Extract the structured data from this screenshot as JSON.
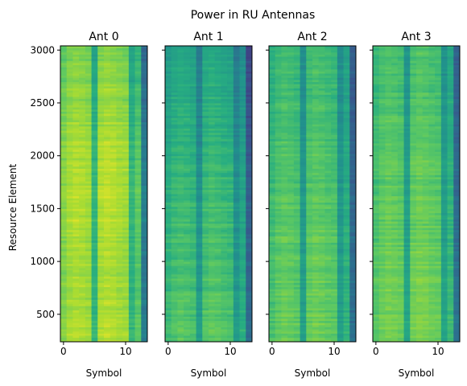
{
  "figure": {
    "title": "Power in RU Antennas",
    "ylabel": "Resource Element"
  },
  "colors": {
    "viridis_low": "#26828e",
    "viridis_mid": "#5ec962",
    "viridis_high": "#d4e21a",
    "frame": "#000000"
  },
  "chart_data": [
    {
      "type": "heatmap",
      "title": "Ant 0",
      "xlabel": "Symbol",
      "ylabel": "Resource Element",
      "x_ticks": [
        0,
        10
      ],
      "y_ticks": [
        500,
        1000,
        1500,
        2000,
        2500,
        3000
      ],
      "xlim": [
        -0.5,
        13.5
      ],
      "ylim": [
        240,
        3040
      ],
      "symbols": [
        0,
        1,
        2,
        3,
        4,
        5,
        6,
        7,
        8,
        9,
        10,
        11,
        12,
        13
      ],
      "column_mean_power": [
        0.78,
        0.83,
        0.85,
        0.84,
        0.82,
        0.62,
        0.84,
        0.86,
        0.85,
        0.83,
        0.82,
        0.62,
        0.7,
        0.38
      ],
      "row_power_trend": {
        "re": [
          240,
          1000,
          1500,
          2000,
          2500,
          3040
        ],
        "offset": [
          0.04,
          0.02,
          0.06,
          0.04,
          0.0,
          -0.04
        ]
      }
    },
    {
      "type": "heatmap",
      "title": "Ant 1",
      "xlabel": "Symbol",
      "x_ticks": [
        0,
        10
      ],
      "xlim": [
        -0.5,
        13.5
      ],
      "ylim": [
        240,
        3040
      ],
      "symbols": [
        0,
        1,
        2,
        3,
        4,
        5,
        6,
        7,
        8,
        9,
        10,
        11,
        12,
        13
      ],
      "column_mean_power": [
        0.6,
        0.64,
        0.66,
        0.65,
        0.63,
        0.48,
        0.65,
        0.67,
        0.66,
        0.64,
        0.63,
        0.47,
        0.55,
        0.28
      ],
      "row_power_trend": {
        "re": [
          240,
          1000,
          1500,
          2000,
          2500,
          3040
        ],
        "offset": [
          0.08,
          0.05,
          0.04,
          0.0,
          -0.03,
          -0.06
        ]
      }
    },
    {
      "type": "heatmap",
      "title": "Ant 2",
      "xlabel": "Symbol",
      "x_ticks": [
        0,
        10
      ],
      "xlim": [
        -0.5,
        13.5
      ],
      "ylim": [
        240,
        3040
      ],
      "symbols": [
        0,
        1,
        2,
        3,
        4,
        5,
        6,
        7,
        8,
        9,
        10,
        11,
        12,
        13
      ],
      "column_mean_power": [
        0.66,
        0.7,
        0.72,
        0.71,
        0.69,
        0.52,
        0.71,
        0.73,
        0.72,
        0.7,
        0.69,
        0.51,
        0.6,
        0.32
      ],
      "row_power_trend": {
        "re": [
          240,
          1000,
          1500,
          2000,
          2500,
          3040
        ],
        "offset": [
          0.06,
          0.04,
          0.03,
          0.01,
          -0.01,
          -0.03
        ]
      }
    },
    {
      "type": "heatmap",
      "title": "Ant 3",
      "xlabel": "Symbol",
      "x_ticks": [
        0,
        10
      ],
      "xlim": [
        -0.5,
        13.5
      ],
      "ylim": [
        240,
        3040
      ],
      "symbols": [
        0,
        1,
        2,
        3,
        4,
        5,
        6,
        7,
        8,
        9,
        10,
        11,
        12,
        13
      ],
      "column_mean_power": [
        0.68,
        0.72,
        0.74,
        0.73,
        0.71,
        0.54,
        0.73,
        0.75,
        0.74,
        0.72,
        0.71,
        0.53,
        0.62,
        0.33
      ],
      "row_power_trend": {
        "re": [
          240,
          1000,
          1500,
          2000,
          2500,
          3040
        ],
        "offset": [
          0.07,
          0.04,
          0.03,
          0.01,
          -0.01,
          -0.03
        ]
      }
    }
  ]
}
